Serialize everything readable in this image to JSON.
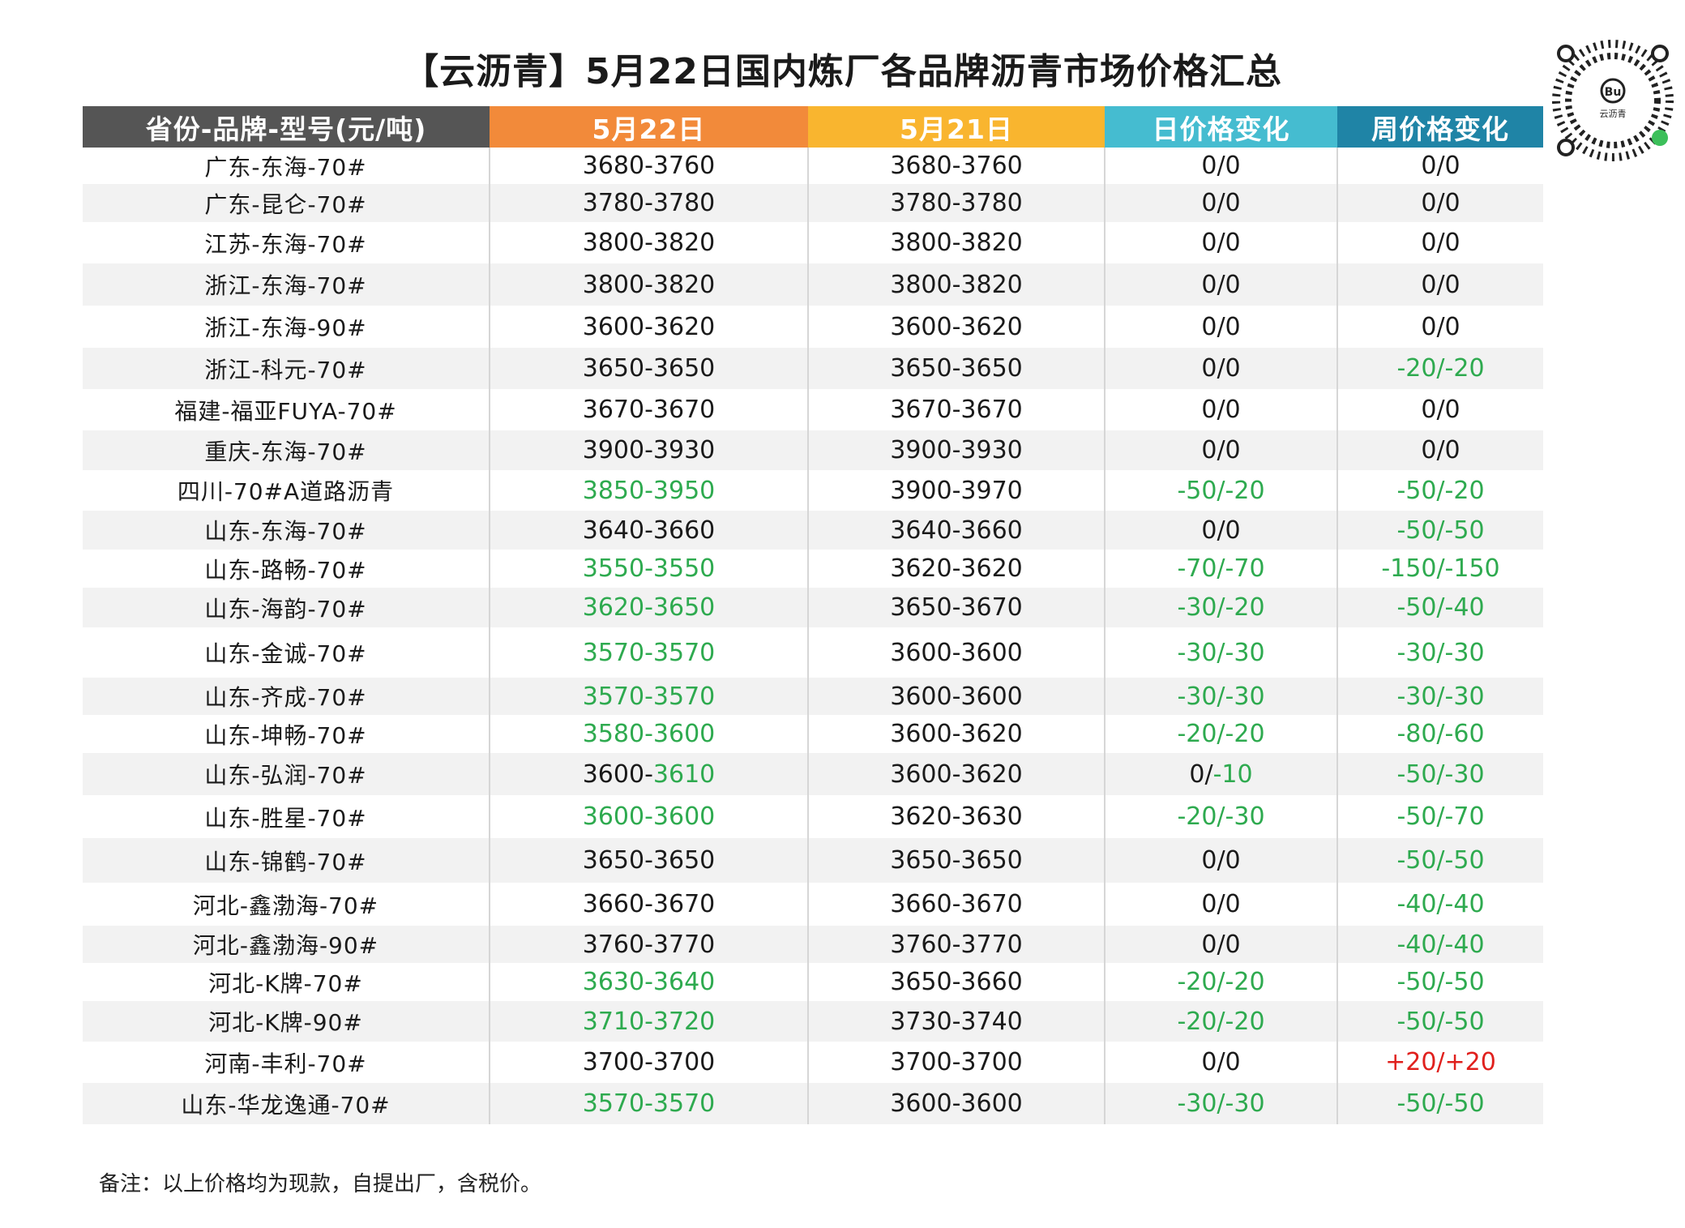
{
  "title": "【云沥青】5月22日国内炼厂各品牌沥青市场价格汇总",
  "qr": {
    "brand": "云沥青",
    "icon": "qr-code-icon"
  },
  "colors": {
    "header_col0": "#555555",
    "header_col1": "#f28a3a",
    "header_col2": "#f9b52f",
    "header_col3": "#45bcd0",
    "header_col4": "#1f84a6",
    "decrease": "#2eaa4f",
    "increase": "#e0201d",
    "normal": "#1a1a1a"
  },
  "table": {
    "headers": [
      "省份-品牌-型号(元/吨)",
      "5月22日",
      "5月21日",
      "日价格变化",
      "周价格变化"
    ],
    "rows": [
      {
        "name": "广东-东海-70#",
        "may22": [
          {
            "t": "3680-3760",
            "c": "k"
          }
        ],
        "may21": "3680-3760",
        "day": [
          {
            "t": "0/0",
            "c": "k"
          }
        ],
        "week": [
          {
            "t": "0/0",
            "c": "k"
          }
        ],
        "h": 45
      },
      {
        "name": "广东-昆仑-70#",
        "may22": [
          {
            "t": "3780-3780",
            "c": "k"
          }
        ],
        "may21": "3780-3780",
        "day": [
          {
            "t": "0/0",
            "c": "k"
          }
        ],
        "week": [
          {
            "t": "0/0",
            "c": "k"
          }
        ],
        "h": 47
      },
      {
        "name": "江苏-东海-70#",
        "may22": [
          {
            "t": "3800-3820",
            "c": "k"
          }
        ],
        "may21": "3800-3820",
        "day": [
          {
            "t": "0/0",
            "c": "k"
          }
        ],
        "week": [
          {
            "t": "0/0",
            "c": "k"
          }
        ],
        "h": 51
      },
      {
        "name": "浙江-东海-70#",
        "may22": [
          {
            "t": "3800-3820",
            "c": "k"
          }
        ],
        "may21": "3800-3820",
        "day": [
          {
            "t": "0/0",
            "c": "k"
          }
        ],
        "week": [
          {
            "t": "0/0",
            "c": "k"
          }
        ],
        "h": 52
      },
      {
        "name": "浙江-东海-90#",
        "may22": [
          {
            "t": "3600-3620",
            "c": "k"
          }
        ],
        "may21": "3600-3620",
        "day": [
          {
            "t": "0/0",
            "c": "k"
          }
        ],
        "week": [
          {
            "t": "0/0",
            "c": "k"
          }
        ],
        "h": 52
      },
      {
        "name": "浙江-科元-70#",
        "may22": [
          {
            "t": "3650-3650",
            "c": "k"
          }
        ],
        "may21": "3650-3650",
        "day": [
          {
            "t": "0/0",
            "c": "k"
          }
        ],
        "week": [
          {
            "t": "-20/-20",
            "c": "g"
          }
        ],
        "h": 51
      },
      {
        "name": "福建-福亚FUYA-70#",
        "may22": [
          {
            "t": "3670-3670",
            "c": "k"
          }
        ],
        "may21": "3670-3670",
        "day": [
          {
            "t": "0/0",
            "c": "k"
          }
        ],
        "week": [
          {
            "t": "0/0",
            "c": "k"
          }
        ],
        "h": 51
      },
      {
        "name": "重庆-东海-70#",
        "may22": [
          {
            "t": "3900-3930",
            "c": "k"
          }
        ],
        "may21": "3900-3930",
        "day": [
          {
            "t": "0/0",
            "c": "k"
          }
        ],
        "week": [
          {
            "t": "0/0",
            "c": "k"
          }
        ],
        "h": 49
      },
      {
        "name": "四川-70#A道路沥青",
        "may22": [
          {
            "t": "3850-3950",
            "c": "g"
          }
        ],
        "may21": "3900-3970",
        "day": [
          {
            "t": "-50/-20",
            "c": "g"
          }
        ],
        "week": [
          {
            "t": "-50/-20",
            "c": "g"
          }
        ],
        "h": 50
      },
      {
        "name": "山东-东海-70#",
        "may22": [
          {
            "t": "3640-3660",
            "c": "k"
          }
        ],
        "may21": "3640-3660",
        "day": [
          {
            "t": "0/0",
            "c": "k"
          }
        ],
        "week": [
          {
            "t": "-50/-50",
            "c": "g"
          }
        ],
        "h": 48
      },
      {
        "name": "山东-路畅-70#",
        "may22": [
          {
            "t": "3550-3550",
            "c": "g"
          }
        ],
        "may21": "3620-3620",
        "day": [
          {
            "t": "-70/-70",
            "c": "g"
          }
        ],
        "week": [
          {
            "t": "-150/-150",
            "c": "g"
          }
        ],
        "h": 47
      },
      {
        "name": "山东-海韵-70#",
        "may22": [
          {
            "t": "3620-3650",
            "c": "g"
          }
        ],
        "may21": "3650-3670",
        "day": [
          {
            "t": "-30/-20",
            "c": "g"
          }
        ],
        "week": [
          {
            "t": "-50/-40",
            "c": "g"
          }
        ],
        "h": 49
      },
      {
        "name": "山东-金诚-70#",
        "may22": [
          {
            "t": "3570-3570",
            "c": "g"
          }
        ],
        "may21": "3600-3600",
        "day": [
          {
            "t": "-30/-30",
            "c": "g"
          }
        ],
        "week": [
          {
            "t": "-30/-30",
            "c": "g"
          }
        ],
        "h": 62
      },
      {
        "name": "山东-齐成-70#",
        "may22": [
          {
            "t": "3570-3570",
            "c": "g"
          }
        ],
        "may21": "3600-3600",
        "day": [
          {
            "t": "-30/-30",
            "c": "g"
          }
        ],
        "week": [
          {
            "t": "-30/-30",
            "c": "g"
          }
        ],
        "h": 46
      },
      {
        "name": "山东-坤畅-70#",
        "may22": [
          {
            "t": "3580-3600",
            "c": "g"
          }
        ],
        "may21": "3600-3620",
        "day": [
          {
            "t": "-20/-20",
            "c": "g"
          }
        ],
        "week": [
          {
            "t": "-80/-60",
            "c": "g"
          }
        ],
        "h": 47
      },
      {
        "name": "山东-弘润-70#",
        "may22": [
          {
            "t": "3600-",
            "c": "k"
          },
          {
            "t": "3610",
            "c": "g"
          }
        ],
        "may21": "3600-3620",
        "day": [
          {
            "t": "0/",
            "c": "k"
          },
          {
            "t": "-10",
            "c": "g"
          }
        ],
        "week": [
          {
            "t": "-50/-30",
            "c": "g"
          }
        ],
        "h": 52
      },
      {
        "name": "山东-胜星-70#",
        "may22": [
          {
            "t": "3600-3600",
            "c": "g"
          }
        ],
        "may21": "3620-3630",
        "day": [
          {
            "t": "-20/-30",
            "c": "g"
          }
        ],
        "week": [
          {
            "t": "-50/-70",
            "c": "g"
          }
        ],
        "h": 53
      },
      {
        "name": "山东-锦鹤-70#",
        "may22": [
          {
            "t": "3650-3650",
            "c": "k"
          }
        ],
        "may21": "3650-3650",
        "day": [
          {
            "t": "0/0",
            "c": "k"
          }
        ],
        "week": [
          {
            "t": "-50/-50",
            "c": "g"
          }
        ],
        "h": 55
      },
      {
        "name": "河北-鑫渤海-70#",
        "may22": [
          {
            "t": "3660-3670",
            "c": "k"
          }
        ],
        "may21": "3660-3670",
        "day": [
          {
            "t": "0/0",
            "c": "k"
          }
        ],
        "week": [
          {
            "t": "-40/-40",
            "c": "g"
          }
        ],
        "h": 53
      },
      {
        "name": "河北-鑫渤海-90#",
        "may22": [
          {
            "t": "3760-3770",
            "c": "k"
          }
        ],
        "may21": "3760-3770",
        "day": [
          {
            "t": "0/0",
            "c": "k"
          }
        ],
        "week": [
          {
            "t": "-40/-40",
            "c": "g"
          }
        ],
        "h": 46
      },
      {
        "name": "河北-K牌-70#",
        "may22": [
          {
            "t": "3630-3640",
            "c": "g"
          }
        ],
        "may21": "3650-3660",
        "day": [
          {
            "t": "-20/-20",
            "c": "g"
          }
        ],
        "week": [
          {
            "t": "-50/-50",
            "c": "g"
          }
        ],
        "h": 47
      },
      {
        "name": "河北-K牌-90#",
        "may22": [
          {
            "t": "3710-3720",
            "c": "g"
          }
        ],
        "may21": "3730-3740",
        "day": [
          {
            "t": "-20/-20",
            "c": "g"
          }
        ],
        "week": [
          {
            "t": "-50/-50",
            "c": "g"
          }
        ],
        "h": 50
      },
      {
        "name": "河南-丰利-70#",
        "may22": [
          {
            "t": "3700-3700",
            "c": "k"
          }
        ],
        "may21": "3700-3700",
        "day": [
          {
            "t": "0/0",
            "c": "k"
          }
        ],
        "week": [
          {
            "t": "+20/+20",
            "c": "r"
          }
        ],
        "h": 51
      },
      {
        "name": "山东-华龙逸通-70#",
        "may22": [
          {
            "t": "3570-3570",
            "c": "g"
          }
        ],
        "may21": "3600-3600",
        "day": [
          {
            "t": "-30/-30",
            "c": "g"
          }
        ],
        "week": [
          {
            "t": "-50/-50",
            "c": "g"
          }
        ],
        "h": 51
      }
    ]
  },
  "note": "备注：以上价格均为现款，自提出厂，含税价。"
}
